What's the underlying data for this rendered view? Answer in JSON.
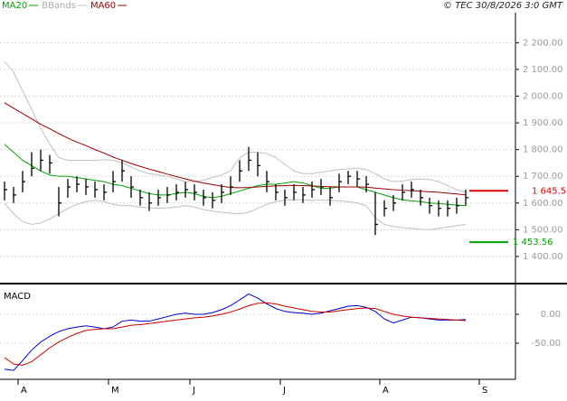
{
  "chart_data": [
    {
      "type": "ohlc",
      "source": "© TEC 30/8/2026 3:0 GMT",
      "categories": [
        null,
        null,
        "A",
        null,
        null,
        null,
        null,
        null,
        null,
        null,
        null,
        null,
        "M",
        null,
        null,
        null,
        null,
        null,
        null,
        null,
        null,
        "J",
        null,
        null,
        null,
        null,
        null,
        null,
        null,
        null,
        null,
        "J",
        null,
        null,
        null,
        null,
        null,
        null,
        null,
        null,
        null,
        null,
        "A",
        null,
        null,
        null,
        null,
        null,
        null,
        null,
        null,
        null,
        null,
        "S"
      ],
      "close": [
        1650,
        1630,
        1680,
        1730,
        1760,
        1750,
        1600,
        1660,
        1670,
        1660,
        1650,
        1640,
        1680,
        1720,
        1660,
        1620,
        1600,
        1620,
        1630,
        1640,
        1650,
        1640,
        1620,
        1610,
        1640,
        1660,
        1720,
        1760,
        1740,
        1680,
        1640,
        1620,
        1640,
        1630,
        1650,
        1660,
        1620,
        1680,
        1700,
        1690,
        1670,
        1520,
        1580,
        1600,
        1640,
        1650,
        1620,
        1590,
        1580,
        1580,
        1590,
        1620,
        null,
        null
      ],
      "high": [
        1680,
        1660,
        1720,
        1790,
        1800,
        1780,
        1660,
        1690,
        1700,
        1690,
        1680,
        1670,
        1720,
        1760,
        1700,
        1650,
        1640,
        1650,
        1660,
        1670,
        1680,
        1670,
        1650,
        1640,
        1670,
        1700,
        1760,
        1810,
        1790,
        1720,
        1670,
        1650,
        1670,
        1660,
        1680,
        1690,
        1660,
        1710,
        1720,
        1720,
        1700,
        1640,
        1610,
        1630,
        1670,
        1680,
        1650,
        1620,
        1610,
        1610,
        1620,
        1650,
        null,
        null
      ],
      "low": [
        1610,
        1600,
        1640,
        1700,
        1720,
        1710,
        1550,
        1620,
        1640,
        1630,
        1620,
        1610,
        1640,
        1680,
        1620,
        1590,
        1570,
        1590,
        1600,
        1610,
        1620,
        1610,
        1590,
        1580,
        1600,
        1630,
        1680,
        1720,
        1700,
        1640,
        1610,
        1590,
        1610,
        1600,
        1620,
        1630,
        1590,
        1640,
        1670,
        1660,
        1640,
        1480,
        1550,
        1570,
        1610,
        1620,
        1590,
        1560,
        1550,
        1550,
        1560,
        1590,
        null,
        null
      ],
      "bar_color": "#000000",
      "bbands": {
        "name": "BBands",
        "color": "#c0c0c0",
        "upper": [
          2130,
          2090,
          2020,
          1950,
          1880,
          1820,
          1770,
          1760,
          1760,
          1760,
          1760,
          1762,
          1760,
          1750,
          1735,
          1720,
          1710,
          1705,
          1700,
          1690,
          1680,
          1680,
          1685,
          1695,
          1705,
          1720,
          1770,
          1790,
          1790,
          1785,
          1770,
          1745,
          1720,
          1710,
          1710,
          1715,
          1720,
          1725,
          1728,
          1730,
          1725,
          1710,
          1690,
          1680,
          1682,
          1688,
          1690,
          1688,
          1680,
          1665,
          1650,
          1640,
          null,
          null
        ],
        "lower": [
          1600,
          1560,
          1530,
          1520,
          1525,
          1540,
          1560,
          1580,
          1595,
          1605,
          1610,
          1605,
          1595,
          1590,
          1590,
          1585,
          1582,
          1580,
          1582,
          1585,
          1590,
          1585,
          1575,
          1570,
          1565,
          1562,
          1560,
          1565,
          1580,
          1595,
          1605,
          1610,
          1612,
          1612,
          1610,
          1610,
          1610,
          1608,
          1605,
          1600,
          1590,
          1545,
          1520,
          1512,
          1508,
          1505,
          1502,
          1500,
          1505,
          1510,
          1515,
          1520,
          null,
          null
        ]
      },
      "series": [
        {
          "name": "MA20",
          "color": "#00a000",
          "values": [
            1820,
            1790,
            1760,
            1740,
            1720,
            1705,
            1700,
            1700,
            1695,
            1690,
            1685,
            1680,
            1670,
            1665,
            1655,
            1645,
            1635,
            1630,
            1630,
            1635,
            1640,
            1635,
            1625,
            1620,
            1625,
            1635,
            1645,
            1655,
            1665,
            1670,
            1670,
            1675,
            1680,
            1675,
            1665,
            1655,
            1655,
            1660,
            1660,
            1660,
            1650,
            1640,
            1630,
            1620,
            1612,
            1608,
            1605,
            1600,
            1598,
            1595,
            1592,
            1590,
            null,
            null
          ]
        },
        {
          "name": "MA60",
          "color": "#990000",
          "values": [
            1975,
            1955,
            1935,
            1915,
            1895,
            1878,
            1860,
            1843,
            1828,
            1815,
            1800,
            1787,
            1772,
            1760,
            1748,
            1737,
            1727,
            1718,
            1708,
            1699,
            1690,
            1682,
            1675,
            1669,
            1663,
            1658,
            1657,
            1658,
            1660,
            1662,
            1664,
            1665,
            1666,
            1665,
            1664,
            1662,
            1661,
            1660,
            1660,
            1660,
            1659,
            1656,
            1653,
            1650,
            1648,
            1646,
            1644,
            1642,
            1640,
            1637,
            1634,
            1630,
            null,
            null
          ]
        }
      ],
      "annotations": [
        {
          "value": 1645.5,
          "label": "1 645.5",
          "color": "#e00000"
        },
        {
          "value": 1453.56,
          "label": "1 453.56",
          "color": "#00a000"
        }
      ],
      "ylim": [
        1305,
        2360
      ],
      "yticks": [
        {
          "value": 1400,
          "label": "1 400.00"
        },
        {
          "value": 1500,
          "label": "1 500.00"
        },
        {
          "value": 1600,
          "label": "1 600.00"
        },
        {
          "value": 1700,
          "label": "1 700.00"
        },
        {
          "value": 1800,
          "label": "1 800.00"
        },
        {
          "value": 1900,
          "label": "1 900.00"
        },
        {
          "value": 2000,
          "label": "2 000.00"
        },
        {
          "value": 2100,
          "label": "2 100.00"
        },
        {
          "value": 2200,
          "label": "2 200.00"
        }
      ],
      "grid": true
    },
    {
      "type": "line",
      "title": "MACD",
      "series": [
        {
          "color": "#0000cc",
          "values": [
            -95,
            -97,
            -80,
            -62,
            -48,
            -38,
            -30,
            -25,
            -22,
            -20,
            -22,
            -25,
            -22,
            -12,
            -10,
            -12,
            -12,
            -8,
            -4,
            0,
            2,
            0,
            0,
            3,
            8,
            15,
            25,
            35,
            28,
            18,
            10,
            5,
            3,
            2,
            0,
            2,
            6,
            10,
            14,
            15,
            12,
            5,
            -8,
            -15,
            -10,
            -5,
            -6,
            -8,
            -10,
            -10,
            -10,
            -9,
            null,
            null
          ]
        },
        {
          "color": "#cc0000",
          "values": [
            -75,
            -86,
            -88,
            -82,
            -70,
            -58,
            -48,
            -40,
            -33,
            -28,
            -26,
            -25,
            -25,
            -22,
            -19,
            -18,
            -16,
            -14,
            -12,
            -10,
            -8,
            -6,
            -5,
            -3,
            0,
            4,
            9,
            15,
            19,
            20,
            18,
            14,
            11,
            8,
            5,
            4,
            4,
            6,
            8,
            10,
            11,
            10,
            5,
            0,
            -3,
            -5,
            -6,
            -7,
            -8,
            -9,
            -10,
            -11,
            null,
            null
          ]
        }
      ],
      "ylim": [
        -112.5,
        50
      ],
      "yticks": [
        {
          "value": 0,
          "label": "0.00"
        },
        {
          "value": -50,
          "label": "-50.00"
        }
      ],
      "grid": true
    }
  ]
}
